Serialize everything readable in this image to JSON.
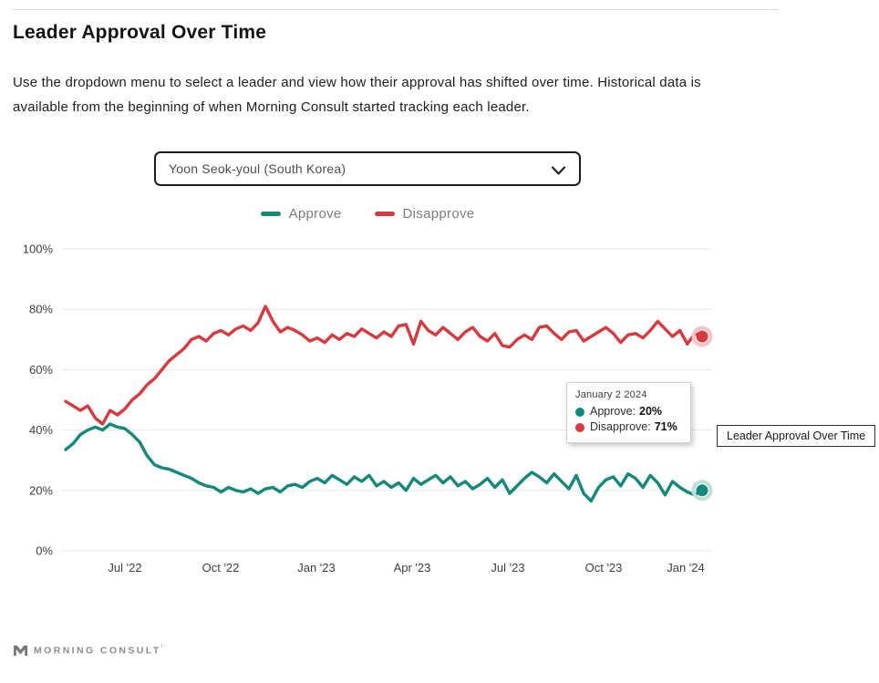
{
  "page": {
    "title": "Leader Approval Over Time",
    "description": "Use the dropdown menu to select a leader and view how their approval has shifted over time. Historical data is available from the beginning of when Morning Consult started tracking each leader.",
    "footer_brand": "MORNING CONSULT",
    "footer_trademark": "'"
  },
  "dropdown": {
    "selected_option": "Yoon Seok-youl (South Korea)"
  },
  "legend": {
    "items": [
      {
        "label": "Approve",
        "color": "#13887b"
      },
      {
        "label": "Disapprove",
        "color": "#d8393e"
      }
    ]
  },
  "tooltip": {
    "date": "January 2 2024",
    "rows": [
      {
        "label": "Approve:",
        "value": "20%",
        "color": "#13887b"
      },
      {
        "label": "Disapprove:",
        "value": "71%",
        "color": "#d8393e"
      }
    ]
  },
  "floating_label": "Leader Approval Over Time",
  "chart_data": {
    "type": "line",
    "title": "Leader Approval Over Time",
    "subject": "Yoon Seok-youl (South Korea)",
    "interval": "weekly",
    "x_start_date": "May 2022",
    "x_end_date": "January 2 2024",
    "x_ticks": [
      "Jul '22",
      "Oct '22",
      "Jan '23",
      "Apr '23",
      "Jul '23",
      "Oct '23",
      "Jan '24"
    ],
    "y_ticks": [
      "100%",
      "80%",
      "60%",
      "40%",
      "20%",
      "0%"
    ],
    "ylim": [
      0,
      100
    ],
    "grid": true,
    "legend_position": "top",
    "series": [
      {
        "name": "Approve",
        "color": "#13887b",
        "halo_color": "#bfe0da",
        "end_value": 20,
        "values": [
          33.5,
          35.5,
          38.5,
          40,
          41,
          40,
          42,
          41,
          40.5,
          38.5,
          36,
          31.5,
          28.5,
          27.5,
          27,
          26,
          25,
          24,
          22.5,
          21.5,
          21,
          19.5,
          21,
          20,
          19.5,
          20.5,
          19,
          20.5,
          21,
          19.5,
          21.5,
          22,
          21,
          23,
          24,
          22.5,
          25,
          23.5,
          22,
          24.5,
          23,
          25,
          21.5,
          23,
          21,
          22.5,
          20,
          24,
          22,
          23.5,
          25,
          22.5,
          24.5,
          21.5,
          23,
          20.5,
          22,
          24,
          21,
          23.5,
          19,
          21.5,
          24,
          26,
          24.5,
          22.5,
          25.5,
          23,
          20.5,
          25,
          19,
          16.5,
          21,
          23.5,
          24.5,
          21.5,
          25.5,
          24,
          21,
          25,
          22.5,
          18.5,
          23,
          21,
          19.5,
          18.5,
          20
        ]
      },
      {
        "name": "Disapprove",
        "color": "#d8393e",
        "halo_color": "#f5c5c8",
        "end_value": 71,
        "values": [
          49.5,
          48,
          46.5,
          48,
          44,
          42,
          46.5,
          45,
          47,
          50,
          52,
          55,
          57,
          60,
          63,
          65,
          67,
          70,
          71,
          69.5,
          72,
          73,
          71.5,
          73.5,
          74.5,
          73,
          75.5,
          81,
          76,
          72.5,
          74,
          73,
          71.5,
          69.5,
          70.5,
          69,
          71.5,
          70,
          72,
          71,
          73.5,
          72,
          70.5,
          72.5,
          71,
          74.5,
          75,
          68.5,
          76,
          73,
          71.5,
          74,
          72,
          70,
          72.5,
          74,
          71,
          69.5,
          72,
          68,
          67.5,
          70,
          71.5,
          70,
          74,
          74.5,
          72,
          70,
          72.5,
          73,
          69.5,
          71,
          72.5,
          74,
          72,
          69,
          71.5,
          72,
          70.5,
          73,
          76,
          73.5,
          71,
          73,
          68.5,
          72,
          71
        ]
      }
    ]
  }
}
